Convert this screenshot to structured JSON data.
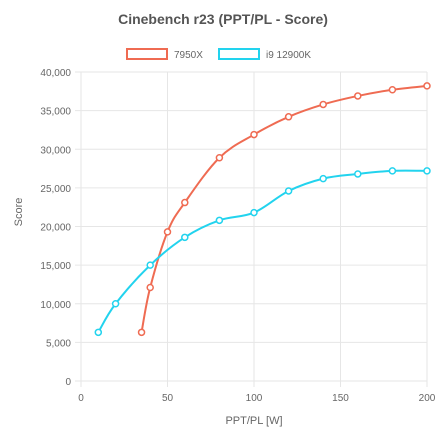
{
  "chart_data": {
    "type": "line",
    "title": "Cinebench r23 (PPT/PL - Score)",
    "xlabel": "PPT/PL [W]",
    "ylabel": "Score",
    "xlim": [
      0,
      200
    ],
    "ylim": [
      0,
      40000
    ],
    "x_ticks": [
      0,
      50,
      100,
      150,
      200
    ],
    "y_ticks": [
      0,
      5000,
      10000,
      15000,
      20000,
      25000,
      30000,
      35000,
      40000
    ],
    "y_tick_labels": [
      "0",
      "5,000",
      "10,000",
      "15,000",
      "20,000",
      "25,000",
      "30,000",
      "35,000",
      "40,000"
    ],
    "grid": true,
    "legend_position": "top-center",
    "series": [
      {
        "name": "7950X",
        "color": "#ef6b52",
        "points": [
          [
            35,
            6300
          ],
          [
            40,
            12100
          ],
          [
            50,
            19300
          ],
          [
            60,
            23100
          ],
          [
            80,
            28900
          ],
          [
            100,
            31900
          ],
          [
            120,
            34200
          ],
          [
            140,
            35800
          ],
          [
            160,
            36900
          ],
          [
            180,
            37700
          ],
          [
            200,
            38200
          ]
        ]
      },
      {
        "name": "i9 12900K",
        "color": "#22d3ee",
        "points": [
          [
            10,
            6300
          ],
          [
            20,
            10000
          ],
          [
            40,
            15000
          ],
          [
            60,
            18600
          ],
          [
            80,
            20800
          ],
          [
            100,
            21800
          ],
          [
            120,
            24600
          ],
          [
            140,
            26200
          ],
          [
            160,
            26800
          ],
          [
            180,
            27200
          ],
          [
            200,
            27200
          ]
        ]
      }
    ]
  }
}
